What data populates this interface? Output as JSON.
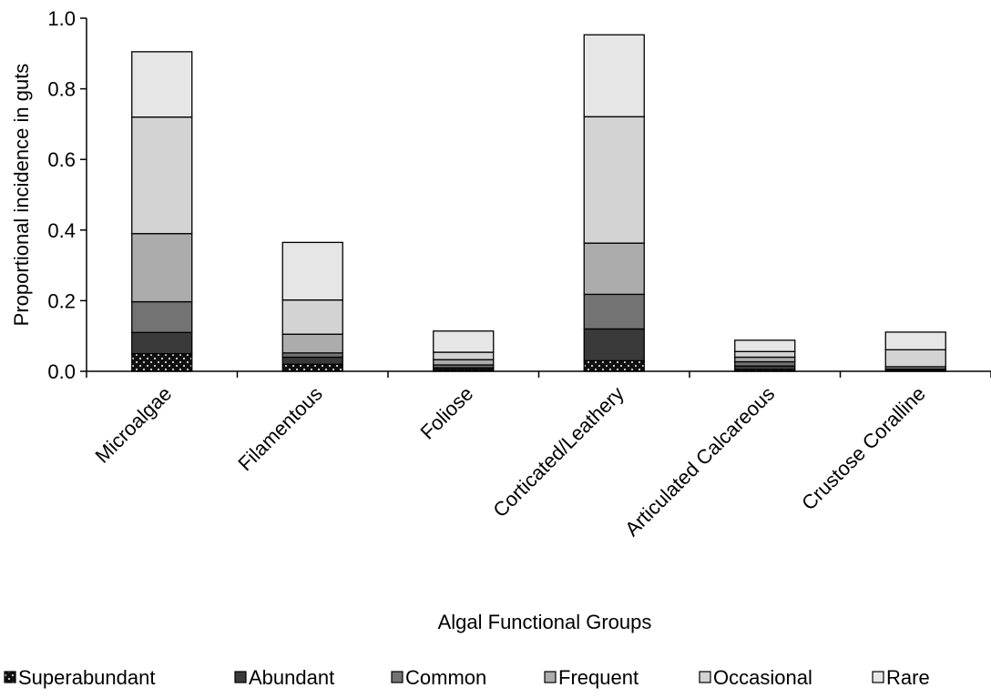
{
  "chart_data": {
    "type": "bar",
    "stacked": true,
    "title": "",
    "xlabel": "Algal Functional Groups",
    "ylabel": "Proportional incidence in guts",
    "ylim": [
      0,
      1.0
    ],
    "yticks": [
      "0.0",
      "0.2",
      "0.4",
      "0.6",
      "0.8",
      "1.0"
    ],
    "grid": false,
    "legend_position": "bottom",
    "categories": [
      "Microalgae",
      "Filamentous",
      "Foliose",
      "Corticated/Leathery",
      "Articulated Calcareous",
      "Crustose Coralline"
    ],
    "series": [
      {
        "name": "Superabundant",
        "color": "#111111",
        "pattern": "dots",
        "values": [
          0.05,
          0.02,
          0.005,
          0.03,
          0.005,
          0.002
        ]
      },
      {
        "name": "Abundant",
        "color": "#3a3a3a",
        "values": [
          0.06,
          0.02,
          0.005,
          0.09,
          0.01,
          0.002
        ]
      },
      {
        "name": "Common",
        "color": "#737373",
        "values": [
          0.087,
          0.012,
          0.008,
          0.098,
          0.012,
          0.003
        ]
      },
      {
        "name": "Frequent",
        "color": "#acacac",
        "values": [
          0.193,
          0.053,
          0.015,
          0.145,
          0.013,
          0.006
        ]
      },
      {
        "name": "Occasional",
        "color": "#d3d3d3",
        "values": [
          0.33,
          0.097,
          0.021,
          0.358,
          0.016,
          0.048
        ]
      },
      {
        "name": "Rare",
        "color": "#e6e6e6",
        "values": [
          0.185,
          0.163,
          0.06,
          0.232,
          0.032,
          0.05
        ]
      }
    ]
  }
}
